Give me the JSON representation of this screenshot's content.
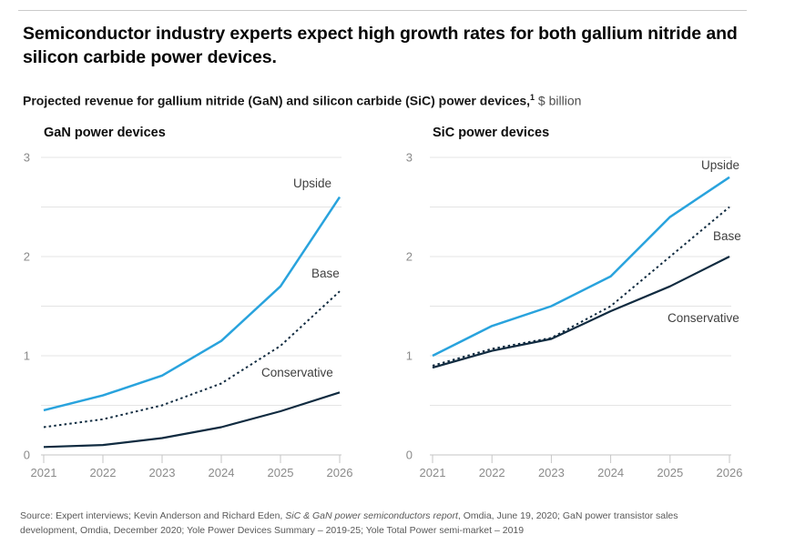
{
  "page": {
    "title": "Semiconductor industry experts expect high growth rates for both gallium nitride and silicon carbide power devices.",
    "subtitle_bold": "Projected revenue for gallium nitride (GaN) and silicon carbide (SiC) power devices,",
    "subtitle_superscript": "1",
    "subtitle_unit": " $ billion",
    "source_prefix": "Source: Expert interviews; Kevin Anderson and Richard Eden, ",
    "source_italic": "SiC & GaN power semiconductors report",
    "source_suffix": ", Omdia, June 19, 2020; GaN power transistor sales development, Omdia, December 2020; Yole Power Devices Summary – 2019-25; Yole Total Power semi-market – 2019"
  },
  "colors": {
    "upside_blue": "#29A3DD",
    "dark_navy": "#102B40",
    "grid": "#e4e4e4",
    "axis": "#c6c6c6",
    "tick_label": "#8b8b8b",
    "series_label": "#3f3f3f"
  },
  "chart_data": [
    {
      "type": "line",
      "title": "GaN power devices",
      "x": [
        2021,
        2022,
        2023,
        2024,
        2025,
        2026
      ],
      "ylim": [
        0,
        3
      ],
      "yticks": [
        0,
        1,
        2,
        3
      ],
      "gridline_step": 0.5,
      "grid": true,
      "legend_position": "inline-labels",
      "ylabel": "$ billion",
      "series": [
        {
          "name": "Upside",
          "style": "solid",
          "color": "#29A3DD",
          "values": [
            0.45,
            0.6,
            0.8,
            1.15,
            1.7,
            2.6
          ]
        },
        {
          "name": "Base",
          "style": "dashed",
          "color": "#102B40",
          "values": [
            0.28,
            0.36,
            0.5,
            0.72,
            1.1,
            1.65
          ]
        },
        {
          "name": "Conservative",
          "style": "solid",
          "color": "#102B40",
          "values": [
            0.08,
            0.1,
            0.17,
            0.28,
            0.44,
            0.63
          ]
        }
      ]
    },
    {
      "type": "line",
      "title": "SiC power devices",
      "x": [
        2021,
        2022,
        2023,
        2024,
        2025,
        2026
      ],
      "ylim": [
        0,
        3
      ],
      "yticks": [
        0,
        1,
        2,
        3
      ],
      "gridline_step": 0.5,
      "grid": true,
      "legend_position": "inline-labels",
      "ylabel": "$ billion",
      "series": [
        {
          "name": "Upside",
          "style": "solid",
          "color": "#29A3DD",
          "values": [
            1.0,
            1.3,
            1.5,
            1.8,
            2.4,
            2.8
          ]
        },
        {
          "name": "Base",
          "style": "dashed",
          "color": "#102B40",
          "values": [
            0.9,
            1.07,
            1.18,
            1.5,
            2.0,
            2.5
          ]
        },
        {
          "name": "Conservative",
          "style": "solid",
          "color": "#102B40",
          "values": [
            0.88,
            1.05,
            1.17,
            1.45,
            1.7,
            2.0
          ]
        }
      ]
    }
  ]
}
